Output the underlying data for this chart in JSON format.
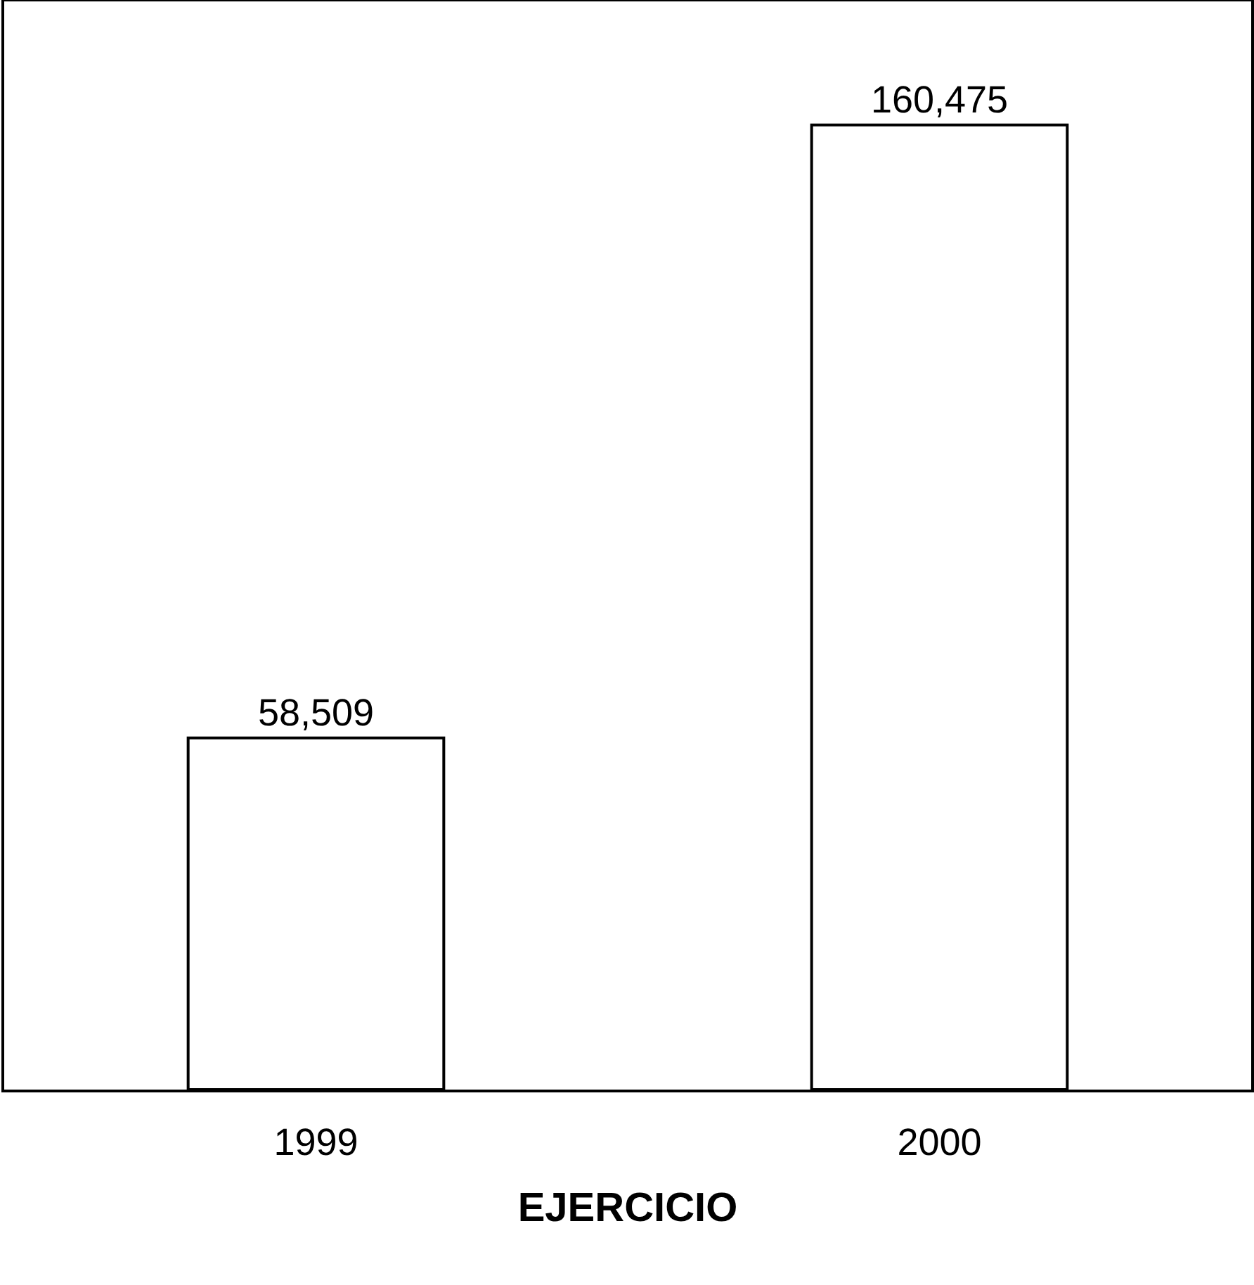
{
  "chart_data": {
    "type": "bar",
    "xlabel": "EJERCICIO",
    "categories": [
      "1999",
      "2000"
    ],
    "values": [
      58509,
      160475
    ],
    "value_labels": [
      "58,509",
      "160,475"
    ],
    "color": "#ffffff",
    "grid": false,
    "legend": false
  }
}
